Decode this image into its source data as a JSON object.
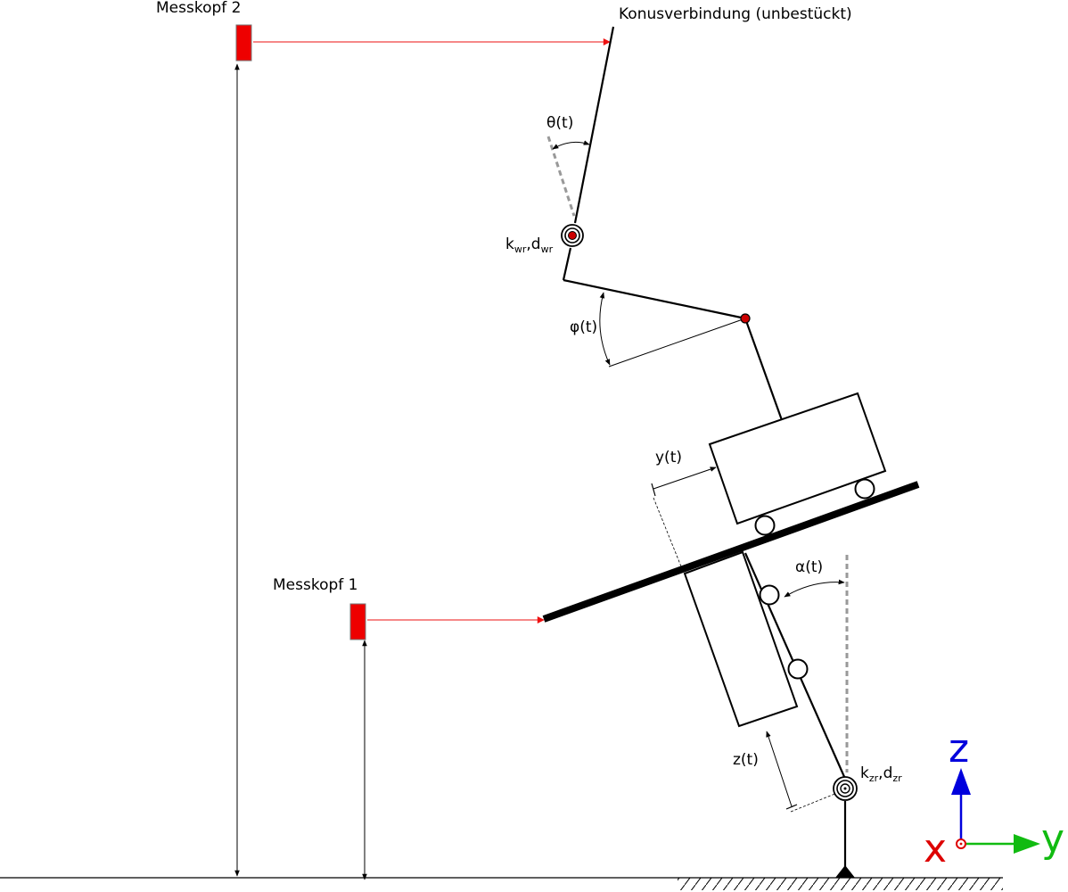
{
  "labels": {
    "messkopf_2": "Messkopf 2",
    "messkopf_1": "Messkopf 1",
    "konus": "Konusverbindung (unbestückt)",
    "theta": "θ(t)",
    "phi": "φ(t)",
    "y_t": "y(t)",
    "alpha": "α(t)",
    "z_t": "z(t)",
    "spring_upper": {
      "k": "k",
      "k_sub": "wr",
      "sep": ",",
      "d": "d",
      "d_sub": "wr"
    },
    "spring_lower": {
      "k": "k",
      "k_sub": "zr",
      "sep": ",",
      "d": "d",
      "d_sub": "zr"
    }
  },
  "axes": {
    "x": "x",
    "y": "y",
    "z": "z"
  },
  "colors": {
    "sensor": "#ee0000",
    "beam": "#ee1111",
    "pin": "#cc0000",
    "axis_x": "#dd0000",
    "axis_y": "#11bb11",
    "axis_z": "#0000dd",
    "reference": "#999999"
  }
}
